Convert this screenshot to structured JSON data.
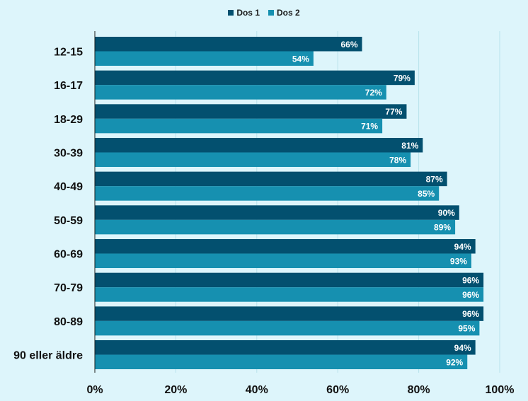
{
  "chart_data": {
    "type": "bar",
    "orientation": "horizontal",
    "categories": [
      "12-15",
      "16-17",
      "18-29",
      "30-39",
      "40-49",
      "50-59",
      "60-69",
      "70-79",
      "80-89",
      "90 eller äldre"
    ],
    "series": [
      {
        "name": "Dos 1",
        "color": "#03506f",
        "values": [
          66,
          79,
          77,
          81,
          87,
          90,
          94,
          96,
          96,
          94
        ],
        "labels": [
          "66%",
          "79%",
          "77%",
          "81%",
          "87%",
          "90%",
          "94%",
          "96%",
          "96%",
          "94%"
        ]
      },
      {
        "name": "Dos 2",
        "color": "#1690b0",
        "values": [
          54,
          72,
          71,
          78,
          85,
          89,
          93,
          96,
          95,
          92
        ],
        "labels": [
          "54%",
          "72%",
          "71%",
          "78%",
          "85%",
          "89%",
          "93%",
          "96%",
          "95%",
          "92%"
        ]
      }
    ],
    "xlim": [
      0,
      100
    ],
    "x_ticks": [
      0,
      20,
      40,
      60,
      80,
      100
    ],
    "x_tick_labels": [
      "0%",
      "20%",
      "40%",
      "60%",
      "80%",
      "100%"
    ],
    "grid": true,
    "legend_position": "top-center",
    "background": "#ddf5fb",
    "grid_color": "#b9e2ec"
  }
}
